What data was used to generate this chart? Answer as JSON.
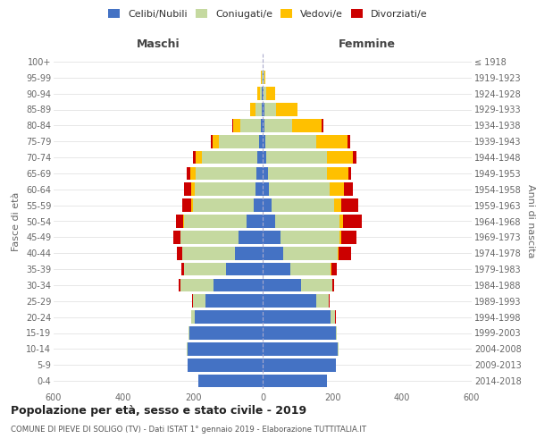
{
  "age_groups": [
    "0-4",
    "5-9",
    "10-14",
    "15-19",
    "20-24",
    "25-29",
    "30-34",
    "35-39",
    "40-44",
    "45-49",
    "50-54",
    "55-59",
    "60-64",
    "65-69",
    "70-74",
    "75-79",
    "80-84",
    "85-89",
    "90-94",
    "95-99",
    "100+"
  ],
  "birth_years": [
    "2014-2018",
    "2009-2013",
    "2004-2008",
    "1999-2003",
    "1994-1998",
    "1989-1993",
    "1984-1988",
    "1979-1983",
    "1974-1978",
    "1969-1973",
    "1964-1968",
    "1959-1963",
    "1954-1958",
    "1949-1953",
    "1944-1948",
    "1939-1943",
    "1934-1938",
    "1929-1933",
    "1924-1928",
    "1919-1923",
    "≤ 1918"
  ],
  "maschi": {
    "celibi": [
      185,
      215,
      215,
      210,
      195,
      165,
      140,
      105,
      80,
      70,
      45,
      25,
      20,
      18,
      15,
      10,
      5,
      3,
      2,
      1,
      0
    ],
    "coniugati": [
      0,
      1,
      2,
      2,
      10,
      35,
      95,
      120,
      150,
      165,
      180,
      175,
      175,
      175,
      160,
      115,
      60,
      18,
      5,
      2,
      0
    ],
    "vedovi": [
      0,
      0,
      0,
      0,
      1,
      1,
      1,
      1,
      1,
      2,
      3,
      5,
      10,
      15,
      18,
      18,
      20,
      15,
      8,
      2,
      0
    ],
    "divorziati": [
      0,
      0,
      0,
      0,
      0,
      1,
      5,
      8,
      15,
      20,
      20,
      25,
      20,
      10,
      8,
      5,
      2,
      0,
      0,
      0,
      0
    ]
  },
  "femmine": {
    "nubili": [
      185,
      210,
      215,
      210,
      195,
      155,
      110,
      80,
      60,
      50,
      35,
      25,
      18,
      15,
      10,
      8,
      5,
      4,
      3,
      2,
      0
    ],
    "coniugate": [
      0,
      1,
      2,
      3,
      12,
      35,
      90,
      115,
      155,
      170,
      185,
      180,
      175,
      170,
      175,
      145,
      80,
      35,
      8,
      2,
      0
    ],
    "vedove": [
      0,
      0,
      0,
      0,
      1,
      1,
      1,
      2,
      3,
      5,
      10,
      20,
      40,
      60,
      75,
      90,
      85,
      60,
      25,
      3,
      0
    ],
    "divorziate": [
      0,
      0,
      0,
      0,
      1,
      2,
      5,
      15,
      35,
      45,
      55,
      50,
      25,
      10,
      10,
      8,
      5,
      1,
      0,
      0,
      0
    ]
  },
  "colors": {
    "celibi": "#4472c4",
    "coniugati": "#c5d9a0",
    "vedovi": "#ffc000",
    "divorziati": "#cc0000"
  },
  "xlim": 600,
  "title": "Popolazione per età, sesso e stato civile - 2019",
  "subtitle": "COMUNE DI PIEVE DI SOLIGO (TV) - Dati ISTAT 1° gennaio 2019 - Elaborazione TUTTITALIA.IT",
  "ylabel_left": "Fasce di età",
  "ylabel_right": "Anni di nascita",
  "legend_labels": [
    "Celibi/Nubili",
    "Coniugati/e",
    "Vedovi/e",
    "Divorziati/e"
  ]
}
